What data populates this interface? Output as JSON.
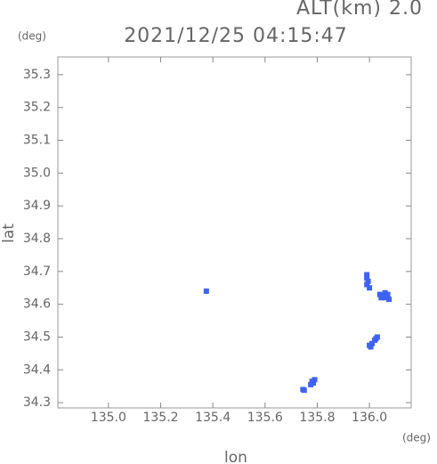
{
  "chart_data": {
    "type": "scatter",
    "title": "2021/12/25 04:15:47",
    "subtitle": "ALT(km) 2.0",
    "xlabel": "lon",
    "ylabel": "lat",
    "x_unit": "(deg)",
    "y_unit": "(deg)",
    "color": "#3f63f0",
    "x": [
      135.375,
      135.99,
      135.99,
      135.995,
      135.99,
      136.0,
      136.04,
      136.05,
      136.06,
      136.07,
      136.075,
      136.06,
      136.045,
      136.0,
      136.01,
      136.02,
      136.03,
      136.005,
      136.025,
      135.78,
      135.785,
      135.775,
      135.79,
      135.745,
      135.75
    ],
    "values": [
      34.64,
      34.69,
      34.68,
      34.67,
      34.66,
      34.65,
      34.63,
      34.625,
      34.62,
      34.63,
      34.615,
      34.635,
      34.62,
      34.475,
      34.48,
      34.49,
      34.5,
      34.47,
      34.495,
      34.365,
      34.36,
      34.355,
      34.37,
      34.34,
      34.338
    ],
    "xlim": [
      134.806,
      136.16
    ],
    "ylim": [
      34.284,
      35.354
    ],
    "xticks": [
      {
        "value": 135.0,
        "label": "135.0"
      },
      135.2,
      135.4,
      135.6,
      135.8,
      {
        "value": 136.0,
        "label": "136.0"
      }
    ],
    "yticks": [
      34.3,
      34.4,
      34.5,
      34.6,
      34.7,
      34.8,
      34.9,
      {
        "value": 35.0,
        "label": "35.0"
      },
      35.1,
      35.2,
      35.3
    ]
  }
}
